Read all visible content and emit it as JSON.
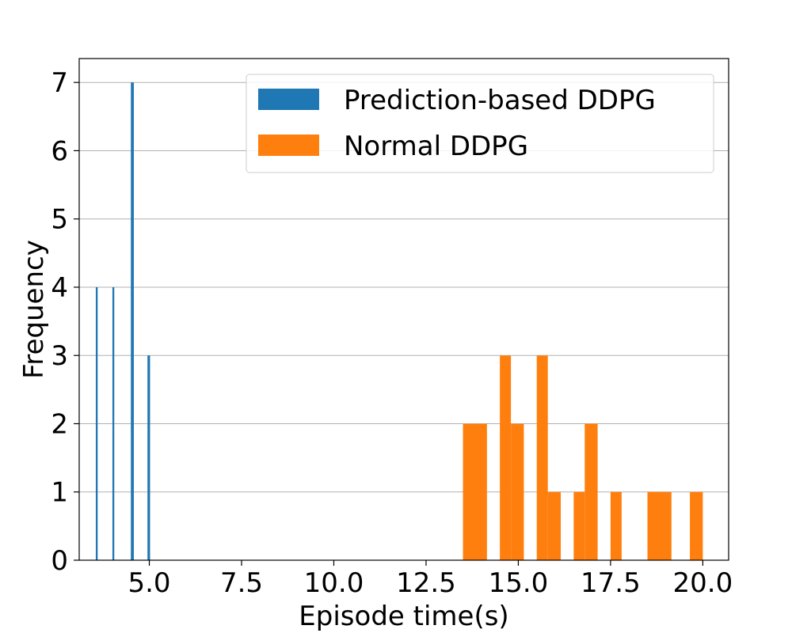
{
  "chart_data": {
    "type": "bar",
    "xlabel": "Episode time(s)",
    "ylabel": "Frequency",
    "xlim": [
      3.1,
      20.7
    ],
    "ylim": [
      0,
      7.35
    ],
    "xticks": [
      5.0,
      7.5,
      10.0,
      12.5,
      15.0,
      17.5,
      20.0
    ],
    "xtick_labels": [
      "5.0",
      "7.5",
      "10.0",
      "12.5",
      "15.0",
      "17.5",
      "20.0"
    ],
    "yticks": [
      0,
      1,
      2,
      3,
      4,
      5,
      6,
      7
    ],
    "ytick_labels": [
      "0",
      "1",
      "2",
      "3",
      "4",
      "5",
      "6",
      "7"
    ],
    "grid": "horizontal",
    "legend_position": "top-right",
    "series": [
      {
        "name": "Prediction-based DDPG",
        "color": "#1f77b4",
        "bars": [
          {
            "x0": 3.55,
            "x1": 3.6,
            "value": 4
          },
          {
            "x0": 4.0,
            "x1": 4.05,
            "value": 4
          },
          {
            "x0": 4.5,
            "x1": 4.58,
            "value": 7
          },
          {
            "x0": 4.95,
            "x1": 5.02,
            "value": 3
          }
        ]
      },
      {
        "name": "Normal DDPG",
        "color": "#ff7f0e",
        "bars": [
          {
            "x0": 13.5,
            "x1": 14.15,
            "value": 2
          },
          {
            "x0": 14.5,
            "x1": 14.8,
            "value": 3
          },
          {
            "x0": 14.8,
            "x1": 15.15,
            "value": 2
          },
          {
            "x0": 15.5,
            "x1": 15.8,
            "value": 3
          },
          {
            "x0": 15.8,
            "x1": 16.15,
            "value": 1
          },
          {
            "x0": 16.5,
            "x1": 16.8,
            "value": 1
          },
          {
            "x0": 16.8,
            "x1": 17.15,
            "value": 2
          },
          {
            "x0": 17.5,
            "x1": 17.8,
            "value": 1
          },
          {
            "x0": 18.5,
            "x1": 19.15,
            "value": 1
          },
          {
            "x0": 19.65,
            "x1": 20.0,
            "value": 1
          }
        ]
      }
    ]
  }
}
